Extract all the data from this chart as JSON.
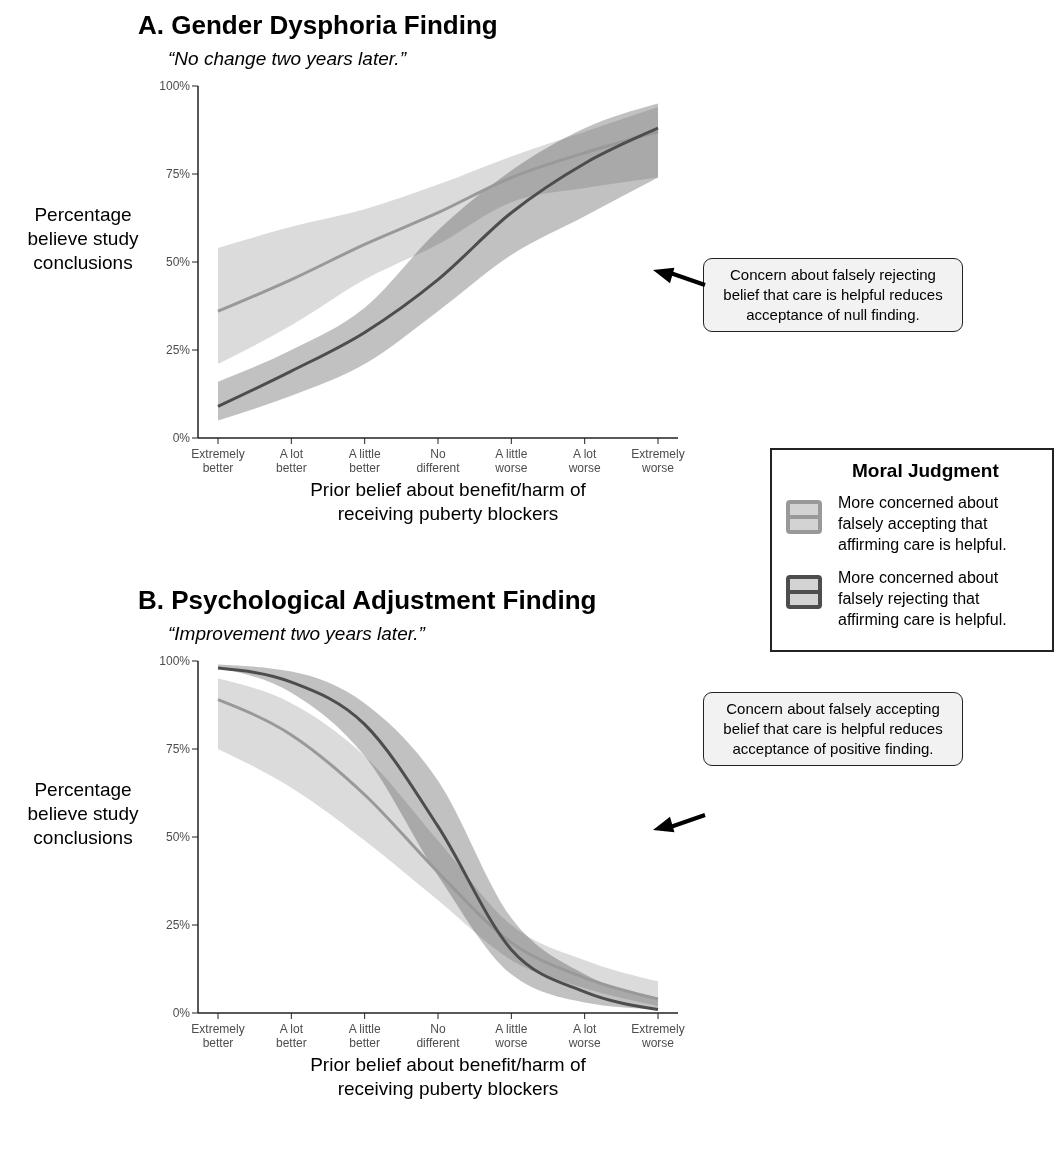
{
  "chart_data": [
    {
      "type": "line",
      "title": "A. Gender Dysphoria Finding",
      "subtitle": "“No change two years later.”",
      "xlabel": "Prior belief about benefit/harm of receiving puberty blockers",
      "ylabel": "Percentage believe study conclusions",
      "legend_title": "Moral Judgment",
      "legend": "right",
      "categories": [
        "Extremely better",
        "A lot better",
        "A little better",
        "No different",
        "A little worse",
        "A lot worse",
        "Extremely worse"
      ],
      "ylim": [
        0,
        100
      ],
      "yticks": [
        {
          "value": 0,
          "label": "0%"
        },
        {
          "value": 25,
          "label": "25%"
        },
        {
          "value": 50,
          "label": "50%"
        },
        {
          "value": 75,
          "label": "75%"
        },
        {
          "value": 100,
          "label": "100%"
        }
      ],
      "grid": false,
      "marker": "none",
      "line_style": "solid",
      "annotations": [
        "Concern about falsely rejecting belief that care is helpful reduces acceptance of null finding."
      ],
      "series": [
        {
          "name": "More concerned about falsely accepting that affirming care is helpful.",
          "color": "#999999",
          "values": [
            36,
            45,
            55,
            64,
            74,
            81,
            87
          ],
          "lower": [
            21,
            32,
            45,
            55,
            67,
            71,
            74
          ],
          "upper": [
            54,
            60,
            65,
            72,
            80,
            87,
            94
          ]
        },
        {
          "name": "More concerned about falsely rejecting that affirming care is helpful.",
          "color": "#4d4d4d",
          "values": [
            9,
            19,
            30,
            45,
            64,
            78,
            88
          ],
          "lower": [
            5,
            12,
            21,
            36,
            52,
            63,
            74
          ],
          "upper": [
            16,
            25,
            37,
            59,
            76,
            88,
            95
          ]
        }
      ]
    },
    {
      "type": "line",
      "title": "B. Psychological Adjustment Finding",
      "subtitle": "“Improvement two years later.”",
      "xlabel": "Prior belief about benefit/harm of receiving puberty blockers",
      "ylabel": "Percentage believe study conclusions",
      "categories": [
        "Extremely better",
        "A lot better",
        "A little better",
        "No different",
        "A little worse",
        "A lot worse",
        "Extremely worse"
      ],
      "ylim": [
        0,
        100
      ],
      "yticks": [
        {
          "value": 0,
          "label": "0%"
        },
        {
          "value": 25,
          "label": "25%"
        },
        {
          "value": 50,
          "label": "50%"
        },
        {
          "value": 75,
          "label": "75%"
        },
        {
          "value": 100,
          "label": "100%"
        }
      ],
      "grid": false,
      "marker": "none",
      "line_style": "solid",
      "annotations": [
        "Concern about falsely accepting belief that care is helpful reduces acceptance of positive finding."
      ],
      "series": [
        {
          "color": "#999999",
          "values": [
            89,
            79,
            62,
            40,
            20,
            10,
            4
          ],
          "lower": [
            75,
            64,
            49,
            32,
            15,
            7,
            2
          ],
          "upper": [
            95,
            88,
            73,
            49,
            25,
            15,
            9
          ]
        },
        {
          "color": "#4d4d4d",
          "values": [
            98,
            94,
            82,
            53,
            18,
            6,
            1
          ],
          "lower": [
            98,
            91,
            73,
            39,
            11,
            3,
            1
          ],
          "upper": [
            99,
            97,
            88,
            66,
            27,
            11,
            4
          ]
        }
      ]
    }
  ]
}
